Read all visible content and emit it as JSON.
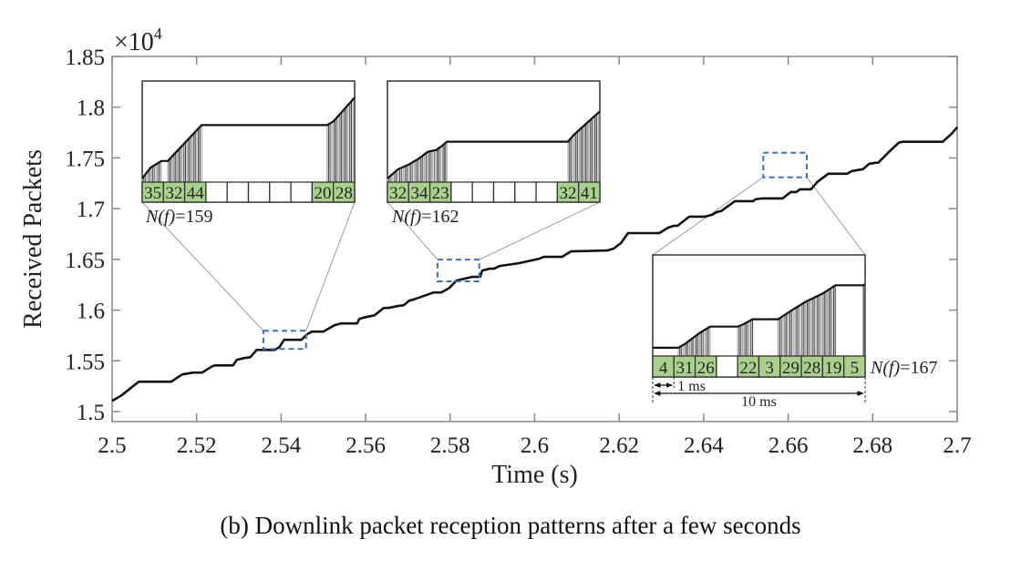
{
  "chart_data": {
    "type": "line",
    "title": "",
    "xlabel": "Time (s)",
    "ylabel": "Received Packets",
    "y_multiplier_label": "×10",
    "y_multiplier_exponent": "4",
    "xlim": [
      2.5,
      2.7
    ],
    "ylim": [
      1.5,
      1.85
    ],
    "x_ticks": [
      2.5,
      2.52,
      2.54,
      2.56,
      2.58,
      2.6,
      2.62,
      2.64,
      2.66,
      2.68,
      2.7
    ],
    "x_tick_labels": [
      "2.5",
      "2.52",
      "2.54",
      "2.56",
      "2.58",
      "2.6",
      "2.62",
      "2.64",
      "2.66",
      "2.68",
      "2.7"
    ],
    "y_ticks": [
      1.5,
      1.55,
      1.6,
      1.65,
      1.7,
      1.75,
      1.8,
      1.85
    ],
    "y_tick_labels": [
      "1.5",
      "1.55",
      "1.6",
      "1.65",
      "1.7",
      "1.75",
      "1.8",
      "1.85"
    ],
    "grid": false,
    "series": [
      {
        "name": "Received Packets",
        "color": "#111111",
        "x": [
          2.5,
          2.5022,
          2.5063,
          2.514,
          2.5166,
          2.5192,
          2.5213,
          2.5237,
          2.5243,
          2.5286,
          2.5295,
          2.5312,
          2.5327,
          2.5342,
          2.5353,
          2.5368,
          2.5385,
          2.5396,
          2.5407,
          2.5448,
          2.5461,
          2.5472,
          2.55,
          2.5526,
          2.5541,
          2.5552,
          2.558,
          2.5585,
          2.56,
          2.5621,
          2.5643,
          2.5654,
          2.5675,
          2.569,
          2.5703,
          2.5718,
          2.5761,
          2.5779,
          2.5798,
          2.5815,
          2.5852,
          2.5871,
          2.5876,
          2.5893,
          2.5904,
          2.5913,
          2.5917,
          2.5962,
          2.6011,
          2.6022,
          2.6065,
          2.6075,
          2.6086,
          2.6172,
          2.6187,
          2.6204,
          2.6221,
          2.6295,
          2.6316,
          2.6329,
          2.6338,
          2.6366,
          2.6403,
          2.642,
          2.6431,
          2.6441,
          2.6474,
          2.6517,
          2.6523,
          2.6538,
          2.6587,
          2.6606,
          2.6619,
          2.6628,
          2.6654,
          2.6669,
          2.6695,
          2.674,
          2.6751,
          2.6777,
          2.6792,
          2.6806,
          2.6813,
          2.6841,
          2.6862,
          2.6871,
          2.6966,
          2.6987,
          2.7
        ],
        "y": [
          1.5105,
          1.5159,
          1.5294,
          1.5294,
          1.5366,
          1.5384,
          1.5384,
          1.5446,
          1.5455,
          1.5455,
          1.5509,
          1.5527,
          1.5536,
          1.5608,
          1.5608,
          1.5608,
          1.5608,
          1.5635,
          1.5707,
          1.5707,
          1.5761,
          1.5788,
          1.5788,
          1.5851,
          1.5869,
          1.5869,
          1.5869,
          1.5913,
          1.5931,
          1.5949,
          1.6021,
          1.6021,
          1.6039,
          1.6048,
          1.6093,
          1.6111,
          1.6174,
          1.6174,
          1.6219,
          1.6291,
          1.6327,
          1.6327,
          1.639,
          1.6408,
          1.6408,
          1.6426,
          1.6435,
          1.6462,
          1.6507,
          1.6525,
          1.6525,
          1.6552,
          1.6579,
          1.6588,
          1.6606,
          1.666,
          1.6759,
          1.6759,
          1.6813,
          1.6831,
          1.6831,
          1.6921,
          1.6921,
          1.6939,
          1.6966,
          1.6975,
          1.7074,
          1.7074,
          1.7092,
          1.7101,
          1.7101,
          1.7164,
          1.7164,
          1.7191,
          1.7191,
          1.7263,
          1.7344,
          1.7344,
          1.7371,
          1.7389,
          1.7443,
          1.7452,
          1.7452,
          1.7569,
          1.765,
          1.7659,
          1.7659,
          1.774,
          1.7803
        ]
      }
    ],
    "zoom_regions": [
      {
        "name": "region-1",
        "x_range": [
          2.5358,
          2.5459
        ],
        "y_range": [
          1.5617,
          1.5796
        ],
        "inset": "inset-1"
      },
      {
        "name": "region-2",
        "x_range": [
          2.577,
          2.5869
        ],
        "y_range": [
          1.6283,
          1.6498
        ],
        "inset": "inset-2"
      },
      {
        "name": "region-3",
        "x_range": [
          2.6541,
          2.6644
        ],
        "y_range": [
          1.7309,
          1.7551
        ],
        "inset": "inset-3"
      }
    ],
    "insets": [
      {
        "name": "inset-1",
        "cells": [
          "35",
          "32",
          "44",
          "",
          "",
          "",
          "",
          "",
          "20",
          "28"
        ],
        "nf_label": "N(f)=159",
        "nf_prefix": "N(f)",
        "nf_value": "=159",
        "profile": [
          [
            0,
            0.0
          ],
          [
            0.04,
            0.12
          ],
          [
            0.09,
            0.19
          ],
          [
            0.12,
            0.19
          ],
          [
            0.28,
            0.58
          ],
          [
            0.3,
            0.58
          ],
          [
            0.87,
            0.58
          ],
          [
            0.9,
            0.62
          ],
          [
            1.0,
            0.88
          ]
        ]
      },
      {
        "name": "inset-2",
        "cells": [
          "32",
          "34",
          "23",
          "",
          "",
          "",
          "",
          "",
          "32",
          "41"
        ],
        "nf_label": "N(f)=162",
        "nf_prefix": "N(f)",
        "nf_value": "=162",
        "profile": [
          [
            0,
            0.0
          ],
          [
            0.05,
            0.1
          ],
          [
            0.1,
            0.15
          ],
          [
            0.15,
            0.22
          ],
          [
            0.19,
            0.29
          ],
          [
            0.23,
            0.31
          ],
          [
            0.26,
            0.36
          ],
          [
            0.28,
            0.4
          ],
          [
            0.31,
            0.4
          ],
          [
            0.85,
            0.4
          ],
          [
            0.88,
            0.48
          ],
          [
            1.0,
            0.73
          ]
        ]
      },
      {
        "name": "inset-3",
        "cells": [
          "4",
          "31",
          "26",
          "",
          "22",
          "3",
          "29",
          "28",
          "19",
          "5"
        ],
        "nf_label": "N(f)=167",
        "nf_prefix": "N(f)",
        "nf_value": "=167",
        "annotation_1ms": "1 ms",
        "annotation_10ms": "10 ms",
        "profile": [
          [
            0,
            0.05
          ],
          [
            0.12,
            0.05
          ],
          [
            0.15,
            0.09
          ],
          [
            0.22,
            0.21
          ],
          [
            0.27,
            0.28
          ],
          [
            0.4,
            0.28
          ],
          [
            0.43,
            0.31
          ],
          [
            0.47,
            0.36
          ],
          [
            0.59,
            0.36
          ],
          [
            0.67,
            0.48
          ],
          [
            0.72,
            0.55
          ],
          [
            0.8,
            0.64
          ],
          [
            0.86,
            0.73
          ],
          [
            0.99,
            0.73
          ],
          [
            1.0,
            0.74
          ]
        ]
      }
    ],
    "colors": {
      "line": "#111111",
      "axis": "#888888",
      "zoom_box": "#3b6fb6",
      "cell_fill": "#a9d18e",
      "connector": "#aaaaaa",
      "bar_dark": "#444444"
    }
  },
  "caption": "(b)  Downlink packet reception patterns after a few seconds"
}
